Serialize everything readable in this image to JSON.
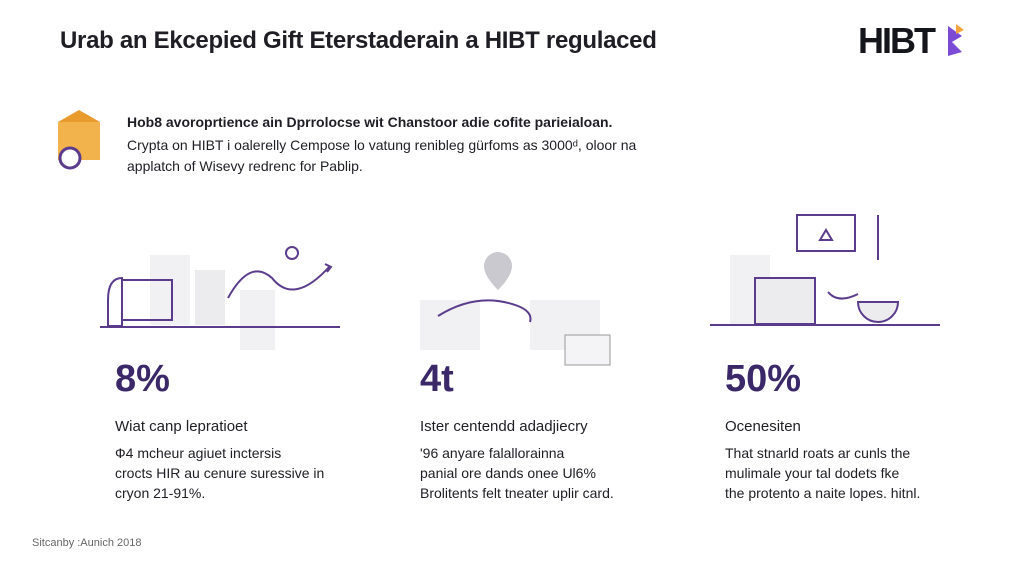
{
  "header": {
    "title": "Urab an Ekcepied Gift Eterstaderain a HIBT regulaced",
    "logo": "HIBT"
  },
  "intro": {
    "title": "Hob8 avoroprtience ain Dprrolocse wit Chanstoor adie cofite parieialoan.",
    "lines": [
      "Crypta on HIBT i oalerelly Cempose lo vatung renibleg gürfoms as 3000ᵈ, oloor na",
      "applatch of Wisevy redrenc for Pablip."
    ]
  },
  "stats": [
    {
      "value": "8%",
      "label": "Wiat canp lepratioet",
      "lines": [
        "Ф4 mcheur agiuet inctersis",
        "crocts HIR au cenure suressive in",
        "cryon 21-91%."
      ]
    },
    {
      "value": "4t",
      "label": "Ister centendd adadjiecry",
      "lines": [
        "'96 anyare falallorainna",
        "panial ore dands onee Ul6%",
        "Brolitents felt tneater uplir card."
      ]
    },
    {
      "value": "50%",
      "label": "Ocenesiten",
      "lines": [
        "That stnarld roats ar cunls the",
        "mulimale your tal dodets fke",
        "the protento a naite lopes. hitnl."
      ]
    }
  ],
  "footer": "Sitcanby :Aunich 2018"
}
